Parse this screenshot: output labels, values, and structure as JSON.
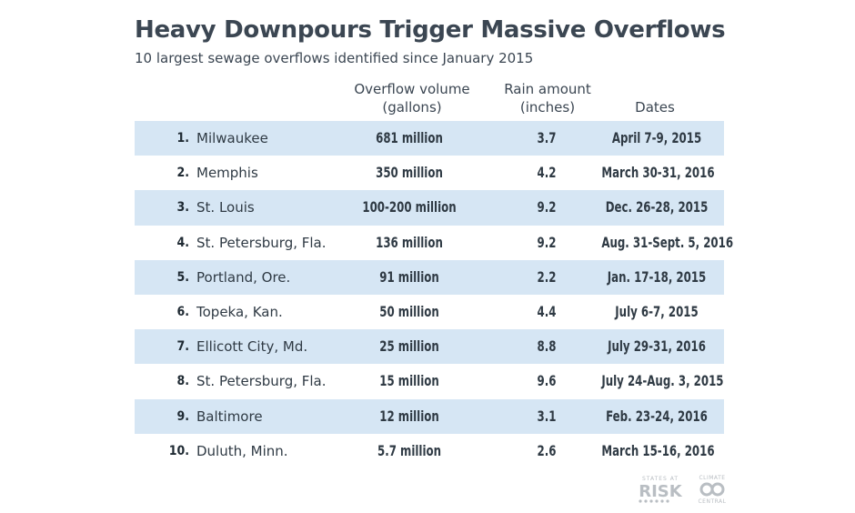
{
  "title": "Heavy Downpours Trigger Massive Overflows",
  "subtitle": "10 largest sewage overflows identified since January 2015",
  "columns": {
    "volume_line1": "Overflow volume",
    "volume_line2": "(gallons)",
    "rain_line1": "Rain amount",
    "rain_line2": "(inches)",
    "dates": "Dates"
  },
  "rows": [
    {
      "rank": "1.",
      "city": "Milwaukee",
      "volume": "681 million",
      "rain": "3.7",
      "dates": "April 7-9, 2015"
    },
    {
      "rank": "2.",
      "city": "Memphis",
      "volume": "350 million",
      "rain": "4.2",
      "dates": "March 30-31, 2016"
    },
    {
      "rank": "3.",
      "city": "St. Louis",
      "volume": "100-200 million",
      "rain": "9.2",
      "dates": "Dec. 26-28, 2015"
    },
    {
      "rank": "4.",
      "city": "St. Petersburg, Fla.",
      "volume": "136 million",
      "rain": "9.2",
      "dates": "Aug. 31-Sept. 5, 2016"
    },
    {
      "rank": "5.",
      "city": "Portland, Ore.",
      "volume": "91 million",
      "rain": "2.2",
      "dates": "Jan. 17-18, 2015"
    },
    {
      "rank": "6.",
      "city": "Topeka, Kan.",
      "volume": "50 million",
      "rain": "4.4",
      "dates": "July 6-7, 2015"
    },
    {
      "rank": "7.",
      "city": "Ellicott City, Md.",
      "volume": "25 million",
      "rain": "8.8",
      "dates": "July 29-31, 2016"
    },
    {
      "rank": "8.",
      "city": "St. Petersburg, Fla.",
      "volume": "15 million",
      "rain": "9.6",
      "dates": "July 24-Aug. 3, 2015"
    },
    {
      "rank": "9.",
      "city": "Baltimore",
      "volume": "12 million",
      "rain": "3.1",
      "dates": "Feb. 23-24, 2016"
    },
    {
      "rank": "10.",
      "city": "Duluth, Minn.",
      "volume": "5.7 million",
      "rain": "2.6",
      "dates": "March 15-16, 2016"
    }
  ],
  "logos": {
    "states_at_risk": "STATES AT RISK",
    "climate_central": "CLIMATE CENTRAL"
  },
  "colors": {
    "row_shade": "#d6e6f4",
    "text": "#2f3a44",
    "logo_gray": "#b9bec3"
  }
}
